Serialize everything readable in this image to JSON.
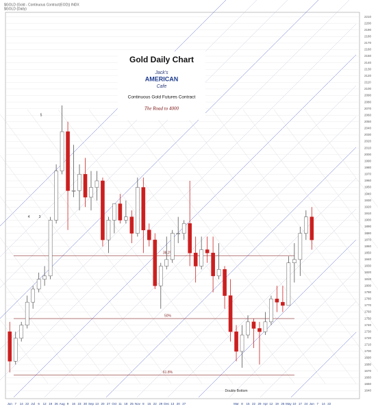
{
  "chart_data": {
    "type": "candlestick",
    "title": "Gold Daily Chart",
    "subtitle": "Continuous Gold Futures Contract",
    "tagline": "The Road to 4000",
    "logo": [
      "Jack's",
      "AMERICAN",
      "Cafe"
    ],
    "header": [
      "$GOLD (Gold - Continuous Contract(EOD)) INDX",
      "$GOLD (Daily)"
    ],
    "categories": [
      "Jun",
      "7",
      "14",
      "22",
      "Jul",
      "6",
      "12",
      "19",
      "26",
      "Aug",
      "9",
      "16",
      "23",
      "30",
      "Sep",
      "13",
      "20",
      "27",
      "Oct",
      "11",
      "18",
      "25",
      "Nov",
      "8",
      "15",
      "22",
      "29",
      "Dec",
      "13",
      "20",
      "27",
      null,
      null,
      null,
      null,
      null,
      null,
      null,
      null,
      "Mar",
      "8",
      "15",
      "22",
      "29",
      "Apr",
      "12",
      "19",
      "26",
      "May",
      "10",
      "17",
      "24",
      "Jun",
      "7",
      "14",
      "22"
    ],
    "open": [
      1730,
      1685,
      1720,
      1740,
      1775,
      1795,
      1810,
      1815,
      1900,
      1975,
      2035,
      1945,
      1945,
      1970,
      1935,
      1950,
      1960,
      1870,
      1900,
      1925,
      1900,
      1905,
      1880,
      1950,
      1885,
      1870,
      1800,
      1830,
      1840,
      1880,
      1880,
      1895,
      1850,
      1830,
      1855,
      1850,
      1815,
      1825,
      1785,
      1730,
      1700,
      1725,
      1745,
      1735,
      1730,
      1745,
      1780,
      1775,
      1770,
      1835,
      1840,
      1880,
      1905,
      null,
      null,
      null
    ],
    "high": [
      1745,
      1730,
      1745,
      1785,
      1800,
      1820,
      1830,
      1905,
      1985,
      2075,
      2050,
      2015,
      1985,
      1995,
      1975,
      1975,
      1965,
      1905,
      1925,
      1940,
      1930,
      1915,
      1965,
      1965,
      1895,
      1880,
      1835,
      1875,
      1885,
      1905,
      1900,
      1960,
      1875,
      1875,
      1875,
      1875,
      1865,
      1830,
      1810,
      1740,
      1740,
      1755,
      1750,
      1745,
      1760,
      1785,
      1800,
      1800,
      1845,
      1865,
      1890,
      1915,
      1920,
      null,
      null,
      null
    ],
    "low": [
      1668,
      1680,
      1715,
      1735,
      1765,
      1790,
      1800,
      1810,
      1895,
      1970,
      1885,
      1935,
      1915,
      1920,
      1915,
      1930,
      1860,
      1850,
      1880,
      1895,
      1895,
      1865,
      1875,
      1850,
      1860,
      1795,
      1765,
      1825,
      1835,
      1865,
      1870,
      1830,
      1805,
      1825,
      1835,
      1790,
      1810,
      1765,
      1715,
      1685,
      1675,
      1720,
      1705,
      1680,
      1725,
      1740,
      1760,
      1760,
      1770,
      1805,
      1815,
      1870,
      1855,
      null,
      null,
      null
    ],
    "close": [
      1685,
      1720,
      1740,
      1775,
      1795,
      1810,
      1815,
      1900,
      1975,
      2035,
      1945,
      1945,
      1970,
      1935,
      1950,
      1960,
      1870,
      1900,
      1925,
      1900,
      1905,
      1880,
      1950,
      1885,
      1870,
      1800,
      1830,
      1840,
      1880,
      1880,
      1895,
      1850,
      1830,
      1855,
      1850,
      1815,
      1825,
      1785,
      1730,
      1700,
      1725,
      1745,
      1735,
      1730,
      1745,
      1780,
      1775,
      1770,
      1835,
      1840,
      1880,
      1905,
      1870,
      null,
      null,
      null
    ],
    "up_color": "#ffffff",
    "down_color": "#cc1f1f",
    "ylim": [
      1630,
      2220
    ],
    "yticks": [
      1640,
      1650,
      1660,
      1670,
      1680,
      1690,
      1700,
      1710,
      1720,
      1730,
      1740,
      1750,
      1760,
      1770,
      1780,
      1790,
      1800,
      1810,
      1820,
      1830,
      1840,
      1850,
      1860,
      1870,
      1880,
      1890,
      1900,
      1910,
      1920,
      1930,
      1940,
      1950,
      1960,
      1970,
      1980,
      1990,
      2000,
      2010,
      2020,
      2030,
      2040,
      2050,
      2060,
      2070,
      2080,
      2090,
      2100,
      2110,
      2120,
      2130,
      2140,
      2150,
      2160,
      2170,
      2180,
      2190,
      2200,
      2210
    ],
    "levels": [
      {
        "label": "61.8%",
        "value": 1664
      },
      {
        "label": "50%",
        "value": 1750
      },
      {
        "label": "38.2%",
        "value": 1846
      }
    ],
    "annotations": [
      {
        "label": "Double Bottom",
        "value": 1640
      },
      {
        "label": "5",
        "value": 2060
      },
      {
        "label": "4",
        "value": 1905
      },
      {
        "label": "3",
        "value": 1905
      }
    ],
    "grid": true
  }
}
